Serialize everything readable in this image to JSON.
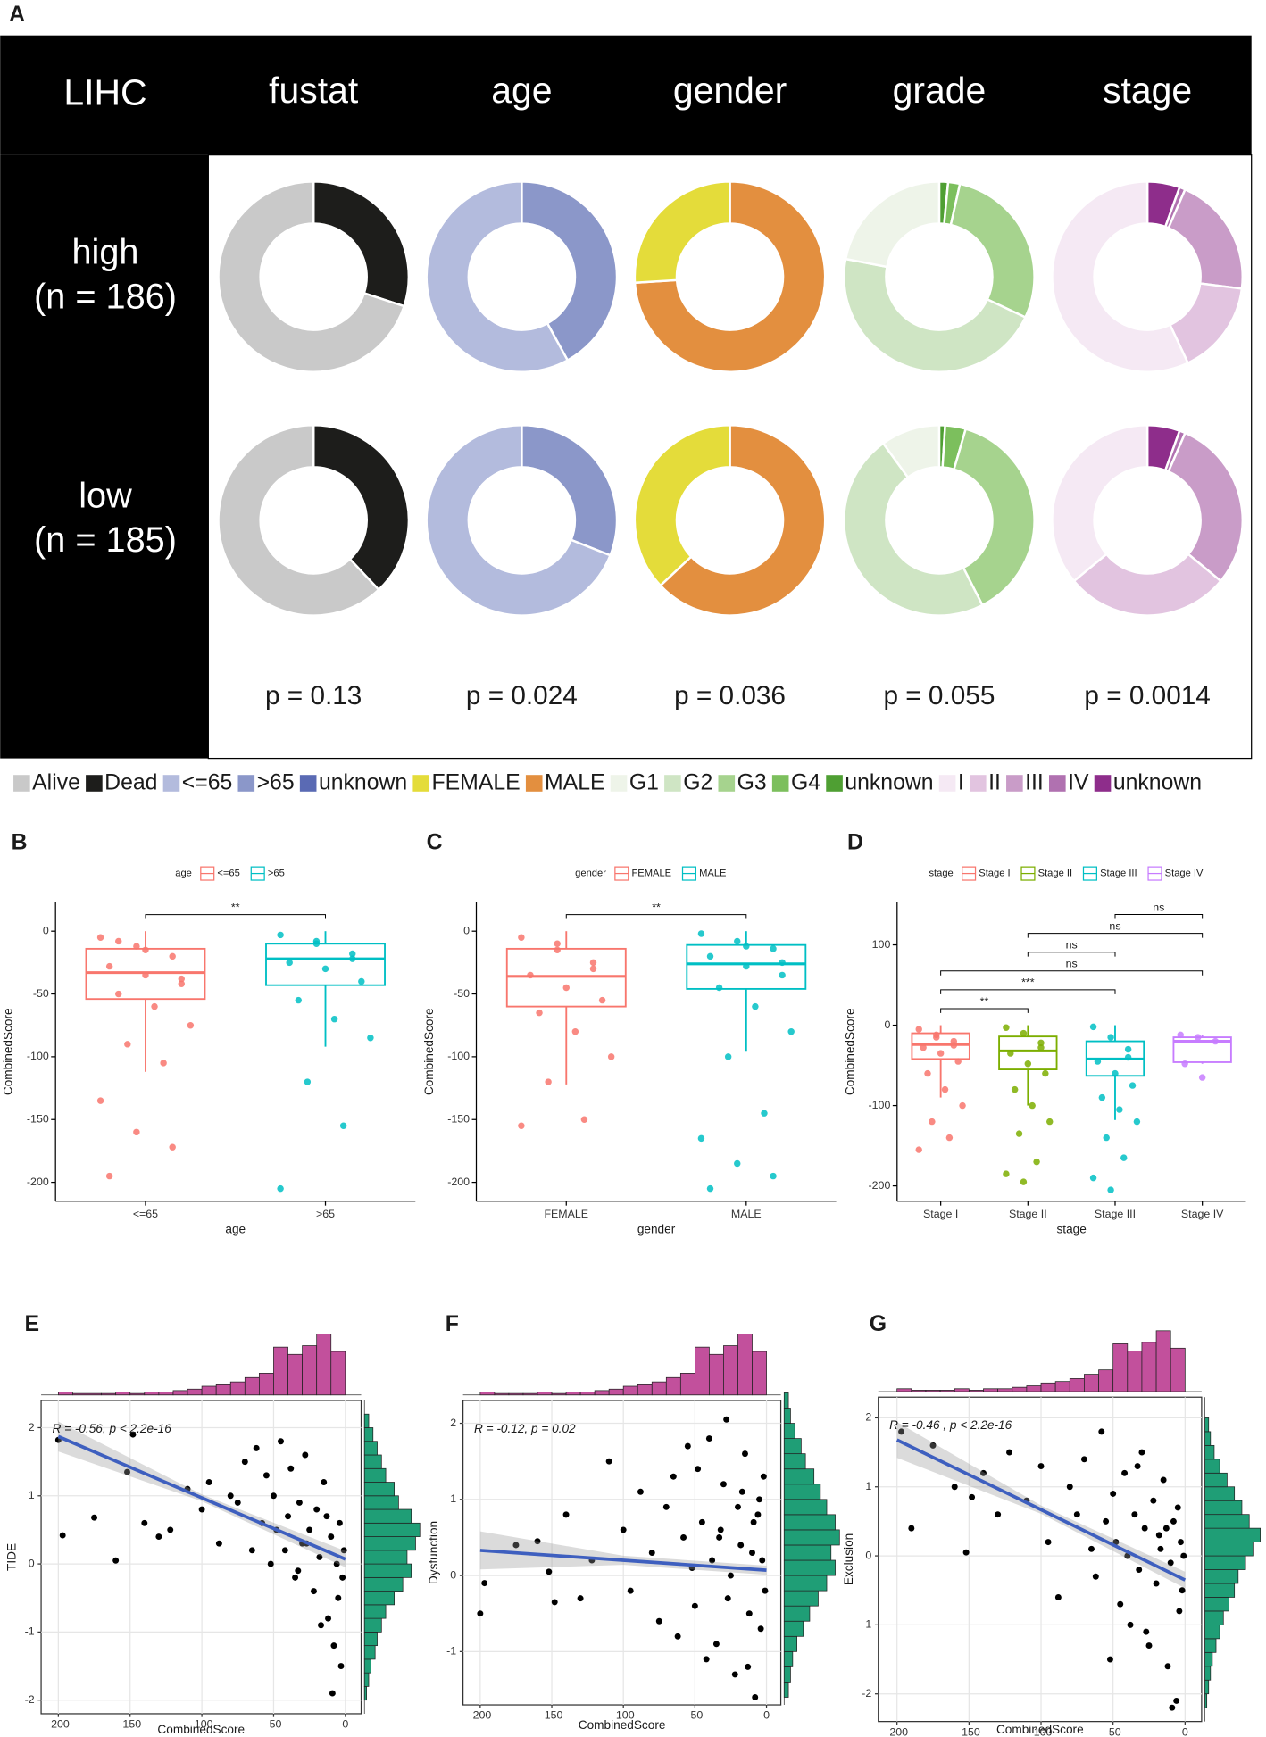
{
  "chart_data": [
    {
      "type": "donut_grid",
      "panel": "A",
      "corner": "LIHC",
      "rows": [
        {
          "label": "high",
          "n": "(n = 186)"
        },
        {
          "label": "low",
          "n": "(n = 185)"
        }
      ],
      "columns": [
        {
          "name": "fustat",
          "groups": [
            {
              "name": "Alive",
              "color": "#c9c9c9"
            },
            {
              "name": "Dead",
              "color": "#1d1d1b"
            }
          ],
          "values": [
            [
              70,
              30
            ],
            [
              62,
              38
            ]
          ],
          "p": "p = 0.13"
        },
        {
          "name": "age",
          "groups": [
            {
              "name": "<=65",
              "color": "#b3bbdd"
            },
            {
              "name": ">65",
              "color": "#8b97c9"
            },
            {
              "name": "unknown",
              "color": "#5a6ab4"
            }
          ],
          "values": [
            [
              58,
              42,
              0
            ],
            [
              69,
              31,
              0
            ]
          ],
          "p": "p = 0.024"
        },
        {
          "name": "gender",
          "groups": [
            {
              "name": "FEMALE",
              "color": "#e4dc3a"
            },
            {
              "name": "MALE",
              "color": "#e38f3f"
            }
          ],
          "values": [
            [
              26,
              74
            ],
            [
              37,
              63
            ]
          ],
          "p": "p = 0.036"
        },
        {
          "name": "grade",
          "groups": [
            {
              "name": "G1",
              "color": "#eef4e9"
            },
            {
              "name": "G2",
              "color": "#cfe5c4"
            },
            {
              "name": "G3",
              "color": "#a6d38e"
            },
            {
              "name": "G4",
              "color": "#7cbf5d"
            },
            {
              "name": "unknown",
              "color": "#4f9f33"
            }
          ],
          "values": [
            [
              22,
              46,
              28.5,
              2,
              1.5
            ],
            [
              10,
              47.5,
              38,
              3.5,
              1
            ]
          ],
          "p": "p = 0.055"
        },
        {
          "name": "stage",
          "groups": [
            {
              "name": "I",
              "color": "#f5e9f4"
            },
            {
              "name": "II",
              "color": "#e2c4e0"
            },
            {
              "name": "III",
              "color": "#c99cc8"
            },
            {
              "name": "IV",
              "color": "#b071b0"
            },
            {
              "name": "unknown",
              "color": "#8e2d8b"
            }
          ],
          "values": [
            [
              57,
              16,
              20.5,
              1,
              5.5
            ],
            [
              36,
              28,
              29.5,
              1,
              5.5
            ]
          ],
          "p": "p = 0.0014"
        }
      ]
    },
    {
      "type": "box",
      "panel": "B",
      "legend_title": "age",
      "categories": [
        "<=65",
        ">65"
      ],
      "colors": [
        "#f8766d",
        "#00bfc4"
      ],
      "xlabel": "age",
      "ylabel": "CombinedScore",
      "ylim": [
        -215,
        23
      ],
      "yticks": [
        0,
        -50,
        -100,
        -150,
        -200
      ],
      "boxes": [
        {
          "low": -112,
          "q1": -54,
          "median": -33,
          "q3": -14,
          "high": 0,
          "points": [
            -5,
            -12,
            -20,
            -28,
            -35,
            -42,
            -50,
            -60,
            -75,
            -90,
            -105,
            -135,
            -160,
            -172,
            -195,
            -15,
            -38,
            -8
          ]
        },
        {
          "low": -92,
          "q1": -43,
          "median": -22,
          "q3": -10,
          "high": 0,
          "points": [
            -3,
            -10,
            -18,
            -25,
            -30,
            -40,
            -55,
            -70,
            -85,
            -120,
            -155,
            -205,
            -8,
            -22
          ]
        }
      ],
      "comparisons": [
        {
          "groups": [
            "<=65",
            ">65"
          ],
          "label": "**"
        }
      ]
    },
    {
      "type": "box",
      "panel": "C",
      "legend_title": "gender",
      "categories": [
        "FEMALE",
        "MALE"
      ],
      "colors": [
        "#f8766d",
        "#00bfc4"
      ],
      "xlabel": "gender",
      "ylabel": "CombinedScore",
      "ylim": [
        -215,
        23
      ],
      "yticks": [
        0,
        -50,
        -100,
        -150,
        -200
      ],
      "boxes": [
        {
          "low": -122,
          "q1": -60,
          "median": -36,
          "q3": -14,
          "high": 0,
          "points": [
            -5,
            -15,
            -25,
            -35,
            -45,
            -55,
            -65,
            -80,
            -100,
            -120,
            -150,
            -155,
            -10,
            -30
          ]
        },
        {
          "low": -96,
          "q1": -46,
          "median": -26,
          "q3": -11,
          "high": 0,
          "points": [
            -2,
            -8,
            -14,
            -20,
            -28,
            -35,
            -45,
            -60,
            -80,
            -100,
            -145,
            -165,
            -185,
            -195,
            -205,
            -12,
            -25
          ]
        }
      ],
      "comparisons": [
        {
          "groups": [
            "FEMALE",
            "MALE"
          ],
          "label": "**"
        }
      ]
    },
    {
      "type": "box",
      "panel": "D",
      "legend_title": "stage",
      "categories": [
        "Stage I",
        "Stage II",
        "Stage III",
        "Stage IV"
      ],
      "colors": [
        "#f8766d",
        "#7cae00",
        "#00bfc4",
        "#c77cff"
      ],
      "xlabel": "stage",
      "ylabel": "CombinedScore",
      "ylim": [
        -219,
        153
      ],
      "yticks": [
        100,
        0,
        -100,
        -200
      ],
      "boxes": [
        {
          "low": -90,
          "q1": -42,
          "median": -24,
          "q3": -10,
          "high": 0,
          "points": [
            -5,
            -12,
            -20,
            -28,
            -35,
            -45,
            -60,
            -80,
            -100,
            -120,
            -140,
            -155,
            -15,
            -25
          ]
        },
        {
          "low": -100,
          "q1": -55,
          "median": -32,
          "q3": -14,
          "high": 0,
          "points": [
            -3,
            -10,
            -22,
            -35,
            -48,
            -60,
            -80,
            -100,
            -120,
            -135,
            -170,
            -185,
            -195,
            -28
          ]
        },
        {
          "low": -118,
          "q1": -63,
          "median": -42,
          "q3": -20,
          "high": 0,
          "points": [
            -2,
            -15,
            -30,
            -45,
            -60,
            -75,
            -90,
            -105,
            -120,
            -140,
            -165,
            -190,
            -205,
            -40
          ]
        },
        {
          "low": -48,
          "q1": -46,
          "median": -20,
          "q3": -15,
          "high": -12,
          "points": [
            -12,
            -15,
            -20,
            -48,
            -65
          ]
        }
      ],
      "comparisons": [
        {
          "groups": [
            "Stage I",
            "Stage II"
          ],
          "label": "**"
        },
        {
          "groups": [
            "Stage I",
            "Stage III"
          ],
          "label": "***"
        },
        {
          "groups": [
            "Stage I",
            "Stage IV"
          ],
          "label": "ns"
        },
        {
          "groups": [
            "Stage II",
            "Stage III"
          ],
          "label": "ns"
        },
        {
          "groups": [
            "Stage II",
            "Stage IV"
          ],
          "label": "ns"
        },
        {
          "groups": [
            "Stage III",
            "Stage IV"
          ],
          "label": "ns"
        }
      ]
    },
    {
      "type": "scatter",
      "panel": "E",
      "xlabel": "CombinedScore",
      "ylabel": "TIDE",
      "annotation": "R = -0.56, p < 2.2e-16",
      "xlim": [
        -212,
        11
      ],
      "xticks": [
        -200,
        -150,
        -100,
        -50,
        0
      ],
      "ylim": [
        -2.2,
        2.4
      ],
      "yticks": [
        -2,
        -1,
        0,
        1,
        2
      ],
      "x": [
        -200,
        -197,
        -175,
        -160,
        -152,
        -148,
        -140,
        -130,
        -122,
        -110,
        -100,
        -95,
        -88,
        -80,
        -75,
        -70,
        -65,
        -62,
        -58,
        -55,
        -52,
        -50,
        -48,
        -45,
        -42,
        -40,
        -38,
        -35,
        -32,
        -30,
        -28,
        -25,
        -22,
        -20,
        -18,
        -15,
        -12,
        -10,
        -8,
        -6,
        -5,
        -4,
        -3,
        -2,
        -1,
        -33,
        -27,
        -17,
        -9,
        -13
      ],
      "y": [
        1.82,
        0.42,
        0.68,
        0.05,
        1.35,
        1.9,
        0.6,
        0.4,
        0.5,
        1.1,
        0.8,
        1.2,
        0.3,
        1.0,
        0.9,
        1.5,
        0.2,
        1.7,
        0.6,
        1.3,
        0.0,
        1.0,
        0.5,
        1.8,
        0.2,
        0.7,
        1.4,
        -0.2,
        0.9,
        0.3,
        1.6,
        0.5,
        -0.4,
        0.8,
        0.1,
        1.2,
        -0.8,
        0.4,
        -1.2,
        0.0,
        -0.5,
        0.6,
        -1.5,
        -0.2,
        0.2,
        -0.1,
        0.3,
        -0.9,
        -1.9,
        0.7
      ],
      "fit": {
        "x": [
          -200,
          -100,
          0
        ],
        "y": [
          1.87,
          0.97,
          0.07
        ],
        "ci_low": [
          1.65,
          0.92,
          -0.05
        ],
        "ci_high": [
          2.09,
          1.02,
          0.19
        ],
        "color": "#3e5fbf"
      },
      "top_hist": {
        "bins": [
          -200,
          -190,
          -180,
          -170,
          -160,
          -150,
          -140,
          -130,
          -120,
          -110,
          -100,
          -90,
          -80,
          -70,
          -60,
          -50,
          -40,
          -30,
          -20,
          -10,
          0
        ],
        "counts": [
          2,
          1,
          1,
          1,
          2,
          1,
          2,
          2,
          3,
          4,
          6,
          7,
          9,
          12,
          15,
          33,
          28,
          34,
          42,
          30
        ],
        "color": "#c2509c"
      },
      "right_hist": {
        "bins": [
          -2.0,
          -1.8,
          -1.6,
          -1.4,
          -1.2,
          -1.0,
          -0.8,
          -0.6,
          -0.4,
          -0.2,
          0.0,
          0.2,
          0.4,
          0.6,
          0.8,
          1.0,
          1.2,
          1.4,
          1.6,
          1.8,
          2.0,
          2.2
        ],
        "counts": [
          1,
          2,
          3,
          5,
          6,
          8,
          10,
          14,
          18,
          22,
          20,
          24,
          26,
          22,
          16,
          14,
          10,
          8,
          6,
          4,
          2
        ],
        "color": "#1f9e76"
      }
    },
    {
      "type": "scatter",
      "panel": "F",
      "xlabel": "CombinedScore",
      "ylabel": "Dysfunction",
      "annotation": "R = -0.12, p = 0.02",
      "xlim": [
        -212,
        10
      ],
      "xticks": [
        -200,
        -150,
        -100,
        -50,
        0
      ],
      "ylim": [
        -1.7,
        2.3
      ],
      "yticks": [
        -1,
        0,
        1,
        2
      ],
      "x": [
        -200,
        -197,
        -175,
        -160,
        -152,
        -148,
        -140,
        -130,
        -122,
        -110,
        -100,
        -95,
        -88,
        -80,
        -75,
        -70,
        -65,
        -62,
        -58,
        -55,
        -52,
        -50,
        -48,
        -45,
        -42,
        -40,
        -38,
        -35,
        -32,
        -30,
        -28,
        -25,
        -22,
        -20,
        -18,
        -15,
        -12,
        -10,
        -8,
        -6,
        -5,
        -4,
        -3,
        -2,
        -1,
        -33,
        -27,
        -17,
        -9,
        -13
      ],
      "y": [
        -0.5,
        -0.1,
        0.4,
        0.45,
        0.05,
        -0.35,
        0.8,
        -0.3,
        0.2,
        1.5,
        0.6,
        -0.2,
        1.1,
        0.3,
        -0.6,
        0.9,
        1.3,
        -0.8,
        0.5,
        1.7,
        0.1,
        -0.4,
        1.4,
        0.7,
        -1.1,
        1.8,
        0.2,
        -0.9,
        0.6,
        1.2,
        2.05,
        0.0,
        -1.3,
        0.9,
        0.4,
        1.6,
        -0.5,
        0.3,
        -1.6,
        0.8,
        1.0,
        -0.7,
        0.2,
        1.3,
        -0.2,
        0.5,
        -0.3,
        1.1,
        0.7,
        -1.2
      ],
      "fit": {
        "x": [
          -200,
          -100,
          0
        ],
        "y": [
          0.33,
          0.2,
          0.07
        ],
        "ci_low": [
          0.08,
          0.14,
          0.01
        ],
        "ci_high": [
          0.58,
          0.26,
          0.13
        ],
        "color": "#3e5fbf"
      },
      "top_hist": {
        "bins": [
          -200,
          -190,
          -180,
          -170,
          -160,
          -150,
          -140,
          -130,
          -120,
          -110,
          -100,
          -90,
          -80,
          -70,
          -60,
          -50,
          -40,
          -30,
          -20,
          -10,
          0
        ],
        "counts": [
          2,
          1,
          1,
          1,
          2,
          1,
          2,
          2,
          3,
          4,
          6,
          7,
          9,
          12,
          15,
          33,
          28,
          34,
          42,
          30
        ],
        "color": "#c2509c"
      },
      "right_hist": {
        "bins": [
          -1.6,
          -1.4,
          -1.2,
          -1.0,
          -0.8,
          -0.6,
          -0.4,
          -0.2,
          0.0,
          0.2,
          0.4,
          0.6,
          0.8,
          1.0,
          1.2,
          1.4,
          1.6,
          1.8,
          2.0,
          2.2,
          2.4
        ],
        "counts": [
          2,
          3,
          4,
          6,
          9,
          12,
          16,
          20,
          24,
          22,
          26,
          24,
          20,
          17,
          14,
          10,
          8,
          5,
          3,
          2
        ],
        "color": "#1f9e76"
      }
    },
    {
      "type": "scatter",
      "panel": "G",
      "xlabel": "CombinedScore",
      "ylabel": "Exclusion",
      "annotation": "R = -0.46 , p < 2.2e-16",
      "xlim": [
        -213,
        11.5
      ],
      "xticks": [
        -200,
        -150,
        -100,
        -50,
        0
      ],
      "ylim": [
        -2.4,
        2.3
      ],
      "yticks": [
        -2,
        -1,
        0,
        1,
        2
      ],
      "x": [
        -197,
        -190,
        -175,
        -160,
        -152,
        -148,
        -140,
        -130,
        -122,
        -110,
        -100,
        -95,
        -88,
        -80,
        -75,
        -70,
        -65,
        -62,
        -58,
        -55,
        -52,
        -50,
        -48,
        -45,
        -42,
        -40,
        -38,
        -35,
        -32,
        -30,
        -28,
        -25,
        -22,
        -20,
        -18,
        -15,
        -12,
        -10,
        -8,
        -6,
        -5,
        -4,
        -3,
        -2,
        -1,
        -33,
        -27,
        -17,
        -9,
        -13
      ],
      "y": [
        1.8,
        0.4,
        1.6,
        1.0,
        0.05,
        0.85,
        1.2,
        0.6,
        1.5,
        0.8,
        1.3,
        0.2,
        -0.6,
        1.0,
        0.6,
        1.4,
        0.1,
        -0.3,
        1.8,
        0.5,
        -1.5,
        0.9,
        0.2,
        -0.7,
        1.2,
        0.0,
        -1.0,
        0.6,
        -0.2,
        1.5,
        0.4,
        -1.3,
        0.8,
        -0.4,
        0.3,
        1.1,
        -1.6,
        -0.1,
        0.5,
        -2.1,
        0.7,
        -0.8,
        0.2,
        -0.5,
        0.0,
        1.3,
        -1.1,
        0.1,
        -2.2,
        0.4
      ],
      "fit": {
        "x": [
          -200,
          -100,
          0
        ],
        "y": [
          1.68,
          0.67,
          -0.35
        ],
        "ci_low": [
          1.42,
          0.61,
          -0.47
        ],
        "ci_high": [
          1.94,
          0.73,
          -0.23
        ],
        "color": "#3e5fbf"
      },
      "top_hist": {
        "bins": [
          -200,
          -190,
          -180,
          -170,
          -160,
          -150,
          -140,
          -130,
          -120,
          -110,
          -100,
          -90,
          -80,
          -70,
          -60,
          -50,
          -40,
          -30,
          -20,
          -10,
          0
        ],
        "counts": [
          2,
          1,
          1,
          1,
          2,
          1,
          2,
          2,
          3,
          4,
          6,
          7,
          9,
          12,
          15,
          33,
          28,
          34,
          42,
          30
        ],
        "color": "#c2509c"
      },
      "right_hist": {
        "bins": [
          -2.2,
          -2.0,
          -1.8,
          -1.6,
          -1.4,
          -1.2,
          -1.0,
          -0.8,
          -0.6,
          -0.4,
          -0.2,
          0.0,
          0.2,
          0.4,
          0.6,
          0.8,
          1.0,
          1.2,
          1.4,
          1.6,
          1.8,
          2.0
        ],
        "counts": [
          1,
          2,
          3,
          4,
          6,
          8,
          10,
          13,
          16,
          18,
          22,
          26,
          30,
          24,
          20,
          16,
          12,
          8,
          5,
          3,
          2
        ],
        "color": "#1f9e76"
      }
    }
  ]
}
